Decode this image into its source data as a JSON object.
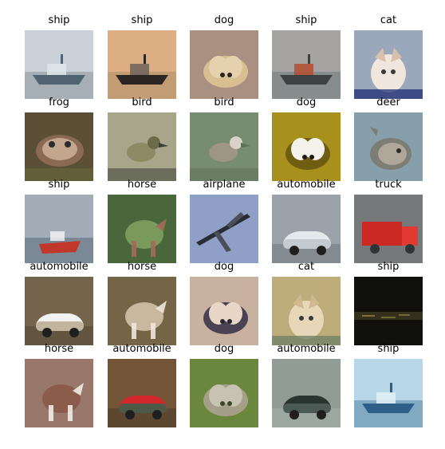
{
  "grid": {
    "rows": 5,
    "cols": 5,
    "images": [
      {
        "label": "ship",
        "subject": "ship",
        "colors": {
          "bg": "#c9cfd6",
          "mid": "#9aa4aa",
          "fg": "#4f6470",
          "accent": "#dfe6ea"
        }
      },
      {
        "label": "ship",
        "subject": "ship",
        "colors": {
          "bg": "#e7b587",
          "mid": "#b8966d",
          "fg": "#2d2521",
          "accent": "#6f625c"
        }
      },
      {
        "label": "dog",
        "subject": "dog",
        "colors": {
          "bg": "#b5998a",
          "mid": "#d8be91",
          "fg": "#e6d1ae",
          "accent": "#2d241c"
        }
      },
      {
        "label": "ship",
        "subject": "ship",
        "colors": {
          "bg": "#a5acad",
          "mid": "#7c8485",
          "fg": "#3e4142",
          "accent": "#b44d31"
        }
      },
      {
        "label": "cat",
        "subject": "cat",
        "colors": {
          "bg": "#a6b2c3",
          "mid": "#d7c1ad",
          "fg": "#f0e6dd",
          "accent": "#1d2e73"
        }
      },
      {
        "label": "frog",
        "subject": "frog",
        "colors": {
          "bg": "#5a4b35",
          "mid": "#8a6a52",
          "fg": "#c9ad95",
          "accent": "#6e7a3f"
        }
      },
      {
        "label": "bird",
        "subject": "bird",
        "colors": {
          "bg": "#b0af93",
          "mid": "#8f8a66",
          "fg": "#6d6a4a",
          "accent": "#3a3f38"
        }
      },
      {
        "label": "bird",
        "subject": "bird",
        "colors": {
          "bg": "#7b8f74",
          "mid": "#9e9585",
          "fg": "#d9d2c8",
          "accent": "#5f6f55"
        }
      },
      {
        "label": "dog",
        "subject": "dog",
        "colors": {
          "bg": "#b59b1e",
          "mid": "#6f5d12",
          "fg": "#f4f1ea",
          "accent": "#1f1b17"
        }
      },
      {
        "label": "deer",
        "subject": "deer",
        "colors": {
          "bg": "#8ea6b2",
          "mid": "#7c7d75",
          "fg": "#b3aa9d",
          "accent": "#3e4b54"
        }
      },
      {
        "label": "ship",
        "subject": "boat",
        "colors": {
          "bg": "#aeb8c2",
          "mid": "#6c7d8a",
          "fg": "#c2372b",
          "accent": "#24323c"
        }
      },
      {
        "label": "horse",
        "subject": "horse",
        "colors": {
          "bg": "#4b6b3c",
          "mid": "#7a9a5c",
          "fg": "#a26a59",
          "accent": "#2f3d23"
        }
      },
      {
        "label": "airplane",
        "subject": "airplane",
        "colors": {
          "bg": "#95a7cf",
          "mid": "#b5c3e0",
          "fg": "#2a2d36",
          "accent": "#4b4f5a"
        }
      },
      {
        "label": "automobile",
        "subject": "car",
        "colors": {
          "bg": "#a3abb1",
          "mid": "#c4cbd0",
          "fg": "#e5e9ec",
          "accent": "#3b4248"
        }
      },
      {
        "label": "truck",
        "subject": "truck",
        "colors": {
          "bg": "#7b7f83",
          "mid": "#cb2a24",
          "fg": "#e23a31",
          "accent": "#303437"
        }
      },
      {
        "label": "automobile",
        "subject": "car",
        "colors": {
          "bg": "#7a6a4f",
          "mid": "#c2b59e",
          "fg": "#f2f2f2",
          "accent": "#2c2621"
        }
      },
      {
        "label": "horse",
        "subject": "horse",
        "colors": {
          "bg": "#7a6a4a",
          "mid": "#c8b8a0",
          "fg": "#efe7dc",
          "accent": "#3d352c"
        }
      },
      {
        "label": "dog",
        "subject": "dog",
        "colors": {
          "bg": "#d7bda9",
          "mid": "#4b4354",
          "fg": "#e8d7c7",
          "accent": "#2b2430"
        }
      },
      {
        "label": "cat",
        "subject": "cat",
        "colors": {
          "bg": "#c6b07d",
          "mid": "#d0b98e",
          "fg": "#e7d7b8",
          "accent": "#6c7f66"
        }
      },
      {
        "label": "ship",
        "subject": "night",
        "colors": {
          "bg": "#0b0b08",
          "mid": "#1a1c14",
          "fg": "#7b6b3a",
          "accent": "#3b3a2a"
        }
      },
      {
        "label": "horse",
        "subject": "horse",
        "colors": {
          "bg": "#a07c70",
          "mid": "#8b5b4b",
          "fg": "#f0ece6",
          "accent": "#5a3a33"
        }
      },
      {
        "label": "automobile",
        "subject": "car",
        "colors": {
          "bg": "#7b5a3a",
          "mid": "#4d5a48",
          "fg": "#d3262b",
          "accent": "#1e1e1e"
        }
      },
      {
        "label": "dog",
        "subject": "dog",
        "colors": {
          "bg": "#6f8c3f",
          "mid": "#a4a087",
          "fg": "#c7c3b3",
          "accent": "#3b4a22"
        }
      },
      {
        "label": "automobile",
        "subject": "car",
        "colors": {
          "bg": "#8f9894",
          "mid": "#4c5a56",
          "fg": "#2a3431",
          "accent": "#c1c7c3"
        }
      },
      {
        "label": "ship",
        "subject": "ship",
        "colors": {
          "bg": "#b3d4e6",
          "mid": "#6f9bb5",
          "fg": "#2f5f86",
          "accent": "#e2f0f7"
        }
      }
    ]
  }
}
